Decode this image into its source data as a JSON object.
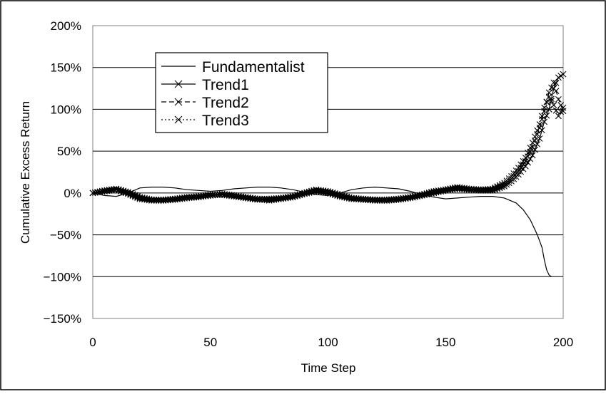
{
  "chart_data": {
    "type": "line",
    "title": "",
    "xlabel": "Time Step",
    "ylabel": "Cumulative Excess Return",
    "xlim": [
      0,
      200
    ],
    "ylim": [
      -150,
      200
    ],
    "x_ticks": [
      0,
      50,
      100,
      150,
      200
    ],
    "x_tick_labels": [
      "0",
      "50",
      "100",
      "150",
      "200"
    ],
    "y_ticks": [
      200,
      150,
      100,
      50,
      0,
      -50,
      -100,
      -150
    ],
    "y_tick_labels": [
      "200%",
      "150%",
      "100%",
      "50%",
      "0%",
      "-50%",
      "-100%",
      "-150%"
    ],
    "grid": "horizontal",
    "legend_position": "top-left",
    "series": [
      {
        "name": "Fundamentalist",
        "marker": "none",
        "dash": "solid",
        "points": [
          [
            0,
            0
          ],
          [
            5,
            -3
          ],
          [
            10,
            -4
          ],
          [
            15,
            0
          ],
          [
            20,
            6
          ],
          [
            25,
            7
          ],
          [
            30,
            7
          ],
          [
            35,
            6
          ],
          [
            40,
            4
          ],
          [
            45,
            3
          ],
          [
            50,
            2
          ],
          [
            55,
            3
          ],
          [
            60,
            5
          ],
          [
            65,
            6
          ],
          [
            70,
            7
          ],
          [
            75,
            7
          ],
          [
            80,
            6
          ],
          [
            85,
            4
          ],
          [
            90,
            1
          ],
          [
            95,
            -2
          ],
          [
            100,
            -3
          ],
          [
            105,
            0
          ],
          [
            110,
            4
          ],
          [
            115,
            6
          ],
          [
            120,
            7
          ],
          [
            125,
            6
          ],
          [
            130,
            5
          ],
          [
            135,
            2
          ],
          [
            140,
            -2
          ],
          [
            145,
            -5
          ],
          [
            150,
            -7
          ],
          [
            155,
            -6
          ],
          [
            160,
            -5
          ],
          [
            165,
            -4
          ],
          [
            170,
            -4
          ],
          [
            175,
            -6
          ],
          [
            180,
            -12
          ],
          [
            183,
            -20
          ],
          [
            186,
            -32
          ],
          [
            189,
            -50
          ],
          [
            191,
            -65
          ],
          [
            192,
            -80
          ],
          [
            193,
            -92
          ],
          [
            194,
            -98
          ],
          [
            195,
            -100
          ]
        ]
      },
      {
        "name": "Trend1",
        "marker": "x",
        "dash": "solid",
        "points": [
          [
            0,
            0
          ],
          [
            5,
            2
          ],
          [
            10,
            5
          ],
          [
            15,
            0
          ],
          [
            20,
            -6
          ],
          [
            25,
            -8
          ],
          [
            30,
            -8
          ],
          [
            35,
            -7
          ],
          [
            40,
            -6
          ],
          [
            45,
            -4
          ],
          [
            50,
            -3
          ],
          [
            55,
            -1
          ],
          [
            60,
            -3
          ],
          [
            65,
            -5
          ],
          [
            70,
            -7
          ],
          [
            75,
            -7
          ],
          [
            80,
            -6
          ],
          [
            85,
            -4
          ],
          [
            90,
            0
          ],
          [
            95,
            3
          ],
          [
            100,
            1
          ],
          [
            105,
            -3
          ],
          [
            110,
            -6
          ],
          [
            115,
            -7
          ],
          [
            120,
            -8
          ],
          [
            125,
            -8
          ],
          [
            130,
            -7
          ],
          [
            135,
            -5
          ],
          [
            140,
            -2
          ],
          [
            145,
            1
          ],
          [
            150,
            4
          ],
          [
            155,
            6
          ],
          [
            160,
            4
          ],
          [
            165,
            3
          ],
          [
            170,
            3
          ],
          [
            175,
            8
          ],
          [
            178,
            14
          ],
          [
            181,
            22
          ],
          [
            184,
            32
          ],
          [
            187,
            45
          ],
          [
            190,
            65
          ],
          [
            192,
            85
          ],
          [
            194,
            100
          ],
          [
            196,
            125
          ],
          [
            198,
            138
          ],
          [
            200,
            142
          ]
        ]
      },
      {
        "name": "Trend2",
        "marker": "x",
        "dash": "dash",
        "points": [
          [
            0,
            0
          ],
          [
            5,
            2
          ],
          [
            10,
            4
          ],
          [
            15,
            -1
          ],
          [
            20,
            -7
          ],
          [
            25,
            -9
          ],
          [
            30,
            -9
          ],
          [
            35,
            -8
          ],
          [
            40,
            -6
          ],
          [
            45,
            -5
          ],
          [
            50,
            -3
          ],
          [
            55,
            -2
          ],
          [
            60,
            -4
          ],
          [
            65,
            -6
          ],
          [
            70,
            -8
          ],
          [
            75,
            -8
          ],
          [
            80,
            -7
          ],
          [
            85,
            -5
          ],
          [
            90,
            -1
          ],
          [
            95,
            2
          ],
          [
            100,
            0
          ],
          [
            105,
            -4
          ],
          [
            110,
            -7
          ],
          [
            115,
            -8
          ],
          [
            120,
            -9
          ],
          [
            125,
            -9
          ],
          [
            130,
            -8
          ],
          [
            135,
            -6
          ],
          [
            140,
            -3
          ],
          [
            145,
            0
          ],
          [
            150,
            3
          ],
          [
            155,
            5
          ],
          [
            160,
            4
          ],
          [
            165,
            3
          ],
          [
            170,
            4
          ],
          [
            175,
            10
          ],
          [
            178,
            17
          ],
          [
            181,
            26
          ],
          [
            184,
            38
          ],
          [
            187,
            55
          ],
          [
            190,
            78
          ],
          [
            192,
            98
          ],
          [
            194,
            120
          ],
          [
            196,
            132
          ],
          [
            198,
            112
          ],
          [
            200,
            98
          ]
        ]
      },
      {
        "name": "Trend3",
        "marker": "x",
        "dash": "dot",
        "points": [
          [
            0,
            0
          ],
          [
            5,
            3
          ],
          [
            10,
            5
          ],
          [
            15,
            1
          ],
          [
            20,
            -5
          ],
          [
            25,
            -8
          ],
          [
            30,
            -9
          ],
          [
            35,
            -7
          ],
          [
            40,
            -5
          ],
          [
            45,
            -4
          ],
          [
            50,
            -2
          ],
          [
            55,
            -2
          ],
          [
            60,
            -3
          ],
          [
            65,
            -6
          ],
          [
            70,
            -7
          ],
          [
            75,
            -9
          ],
          [
            80,
            -7
          ],
          [
            85,
            -4
          ],
          [
            90,
            0
          ],
          [
            95,
            4
          ],
          [
            100,
            2
          ],
          [
            105,
            -2
          ],
          [
            110,
            -6
          ],
          [
            115,
            -8
          ],
          [
            120,
            -8
          ],
          [
            125,
            -9
          ],
          [
            130,
            -7
          ],
          [
            135,
            -5
          ],
          [
            140,
            -2
          ],
          [
            145,
            2
          ],
          [
            150,
            4
          ],
          [
            155,
            7
          ],
          [
            160,
            5
          ],
          [
            165,
            4
          ],
          [
            170,
            5
          ],
          [
            175,
            12
          ],
          [
            178,
            20
          ],
          [
            181,
            30
          ],
          [
            184,
            42
          ],
          [
            187,
            60
          ],
          [
            190,
            82
          ],
          [
            192,
            102
          ],
          [
            194,
            115
          ],
          [
            196,
            105
          ],
          [
            198,
            92
          ],
          [
            200,
            102
          ]
        ]
      }
    ]
  }
}
